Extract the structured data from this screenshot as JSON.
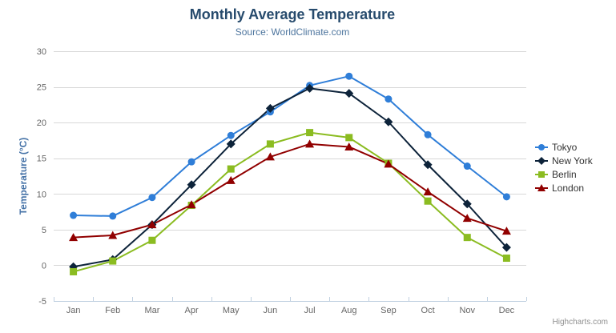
{
  "chart_data": {
    "type": "line",
    "title": "Monthly Average Temperature",
    "subtitle": "Source: WorldClimate.com",
    "categories": [
      "Jan",
      "Feb",
      "Mar",
      "Apr",
      "May",
      "Jun",
      "Jul",
      "Aug",
      "Sep",
      "Oct",
      "Nov",
      "Dec"
    ],
    "xlabel": "",
    "ylabel": "Temperature (°C)",
    "ylim": [
      -5,
      30
    ],
    "yticks": [
      -5,
      0,
      5,
      10,
      15,
      20,
      25,
      30
    ],
    "grid": true,
    "legend_position": "right",
    "series": [
      {
        "name": "Tokyo",
        "color": "#2f7ed8",
        "marker": "circle",
        "values": [
          7.0,
          6.9,
          9.5,
          14.5,
          18.2,
          21.5,
          25.2,
          26.5,
          23.3,
          18.3,
          13.9,
          9.6
        ]
      },
      {
        "name": "New York",
        "color": "#0d233a",
        "marker": "diamond",
        "values": [
          -0.2,
          0.8,
          5.7,
          11.3,
          17.0,
          22.0,
          24.8,
          24.1,
          20.1,
          14.1,
          8.6,
          2.5
        ]
      },
      {
        "name": "Berlin",
        "color": "#8bbc21",
        "marker": "square",
        "values": [
          -0.9,
          0.6,
          3.5,
          8.4,
          13.5,
          17.0,
          18.6,
          17.9,
          14.3,
          9.0,
          3.9,
          1.0
        ]
      },
      {
        "name": "London",
        "color": "#910000",
        "marker": "triangle",
        "values": [
          3.9,
          4.2,
          5.7,
          8.5,
          11.9,
          15.2,
          17.0,
          16.6,
          14.2,
          10.3,
          6.6,
          4.8
        ]
      }
    ]
  },
  "colors": {
    "title": "#274b6d",
    "subtitle": "#4d759e",
    "axis_title": "#4572a7",
    "axis_label": "#666666",
    "grid": "#d8d8d8",
    "axis_line": "#c0d0e0",
    "legend_text": "#333333",
    "credits": "#909090"
  },
  "export_button": {
    "icon": "hamburger-icon"
  },
  "credits": {
    "label": "Highcharts.com"
  }
}
